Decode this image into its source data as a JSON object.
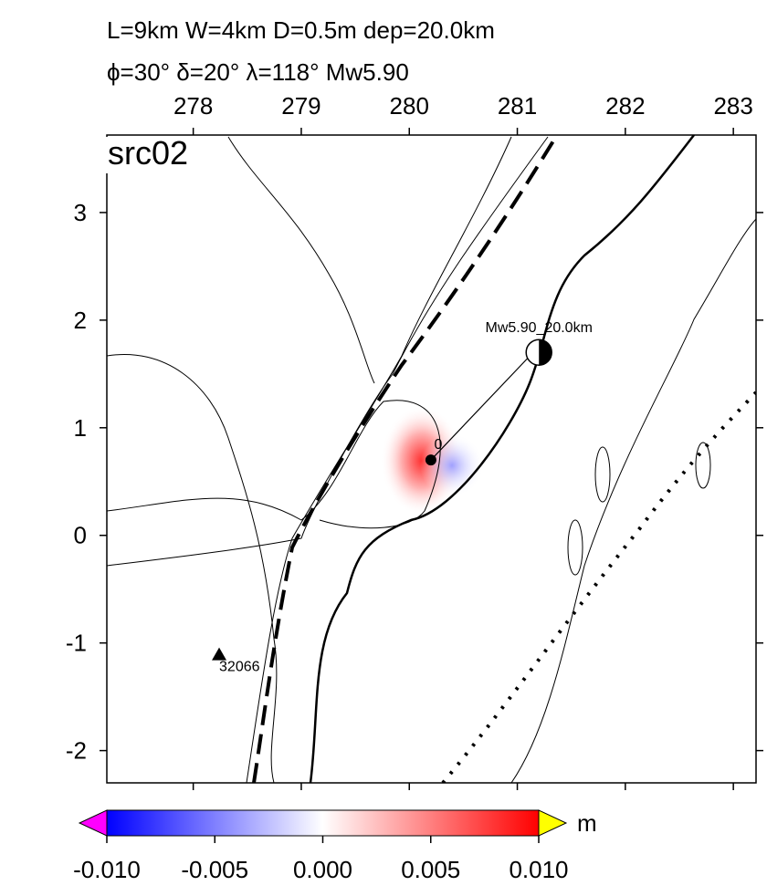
{
  "header": {
    "line1": "L=9km W=4km D=0.5m dep=20.0km",
    "line2": "ϕ=30° δ=20° λ=118° Mw5.90"
  },
  "map": {
    "label": "src02",
    "xlim": [
      277.2,
      283.21
    ],
    "ylim": [
      -2.3,
      3.72
    ],
    "xticks": [
      278,
      279,
      280,
      281,
      282,
      283
    ],
    "yticks": [
      -2,
      -1,
      0,
      1,
      2,
      3
    ],
    "station": {
      "name": "32066",
      "x": 278.24,
      "y": -1.11
    },
    "epicenter": {
      "x": 280.2,
      "y": 0.7
    },
    "mechanism": {
      "label": "Mw5.90_20.0km",
      "x": 281.2,
      "y": 1.7
    },
    "contour_label": "0"
  },
  "colorbar": {
    "range": [
      -0.01,
      0.01
    ],
    "unit": "m",
    "ticks": [
      {
        "value": -0.01,
        "label": "-0.010"
      },
      {
        "value": -0.005,
        "label": "-0.005"
      },
      {
        "value": 0,
        "label": "0.000"
      },
      {
        "value": 0.005,
        "label": "0.005"
      },
      {
        "value": 0.01,
        "label": "0.010"
      }
    ]
  }
}
